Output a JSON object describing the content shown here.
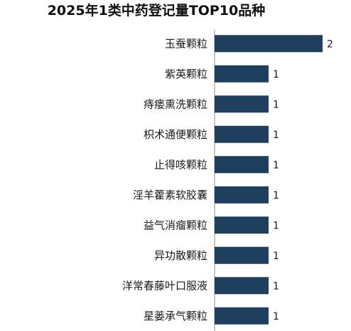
{
  "chart_data": {
    "type": "bar",
    "orientation": "horizontal",
    "title": "2025年1类中药登记量TOP10品种",
    "categories": [
      "玉蚕颗粒",
      "紫英颗粒",
      "痔瘘熏洗颗粒",
      "枳术通便颗粒",
      "止得咳颗粒",
      "淫羊藿素软胶囊",
      "益气消瘤颗粒",
      "异功散颗粒",
      "洋常春藤叶口服液",
      "星蒌承气颗粒"
    ],
    "values": [
      2,
      1,
      1,
      1,
      1,
      1,
      1,
      1,
      1,
      1
    ],
    "xlim": [
      0,
      2
    ],
    "grid": false,
    "data_labels": true,
    "colors": {
      "bar": "#1f3f5f",
      "axis": "#8c8c8c",
      "text": "#1a1a1a"
    }
  }
}
